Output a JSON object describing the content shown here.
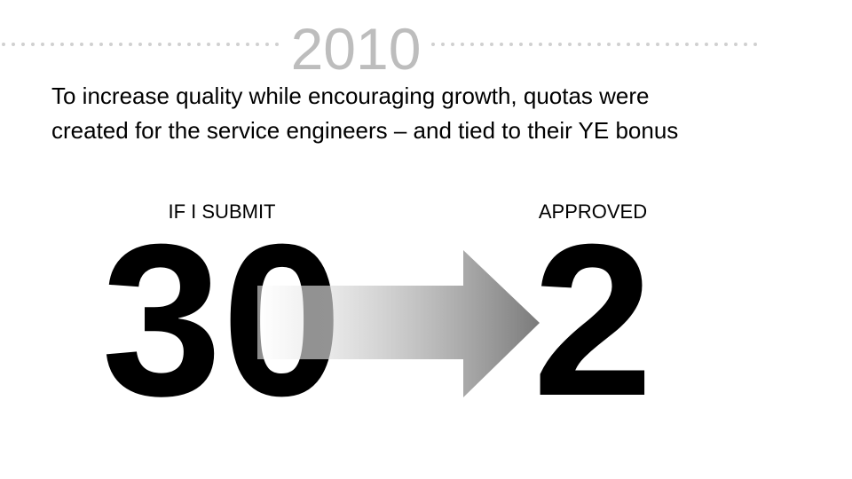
{
  "title": "2010",
  "body": {
    "lines": [
      "To increase quality while encouraging growth, quotas were",
      "created for the service engineers – and tied to their YE bonus"
    ]
  },
  "left": {
    "label": "IF I SUBMIT",
    "number": 30
  },
  "right": {
    "label": "APPROVED",
    "number": 2
  }
}
